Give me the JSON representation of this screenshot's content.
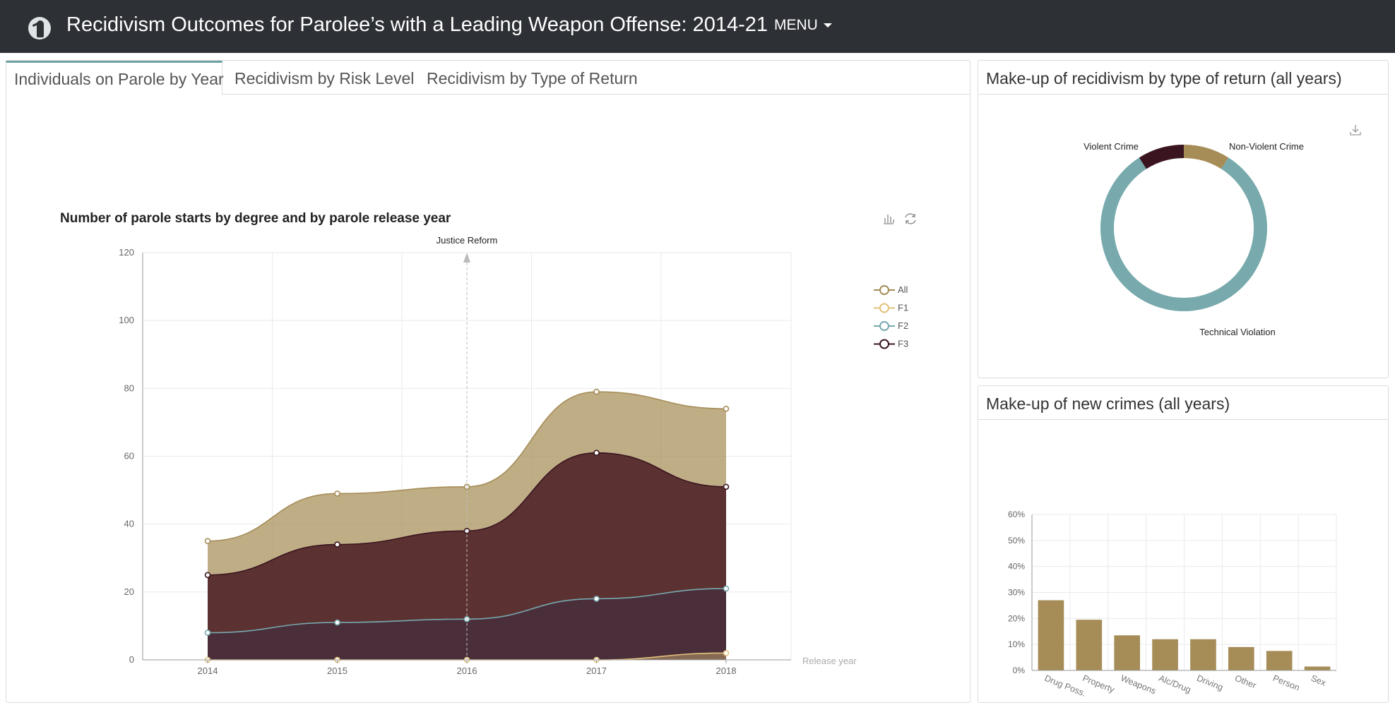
{
  "header": {
    "title": "Recidivism Outcomes for Parolee’s with a Leading Weapon Offense: 2014-21",
    "menu_label": "MENU"
  },
  "tabs": [
    {
      "label": "Individuals on Parole by Year",
      "active": true
    },
    {
      "label": "Recidivism by Risk Level",
      "active": false
    },
    {
      "label": "Recidivism by Type of Return",
      "active": false
    }
  ],
  "icons": {
    "logo": "parolee-logo-icon",
    "bar_toggle": "bar-chart-icon",
    "restore": "refresh-icon",
    "download": "download-icon",
    "menu_caret": "caret-down-icon"
  },
  "side_top": {
    "title": "Make-up of recidivism by type of return (all years)"
  },
  "side_bottom": {
    "title": "Make-up of new crimes (all years)"
  },
  "colors": {
    "nav": "#2d3035",
    "all": "#a68d58",
    "f1": "#e3c27e",
    "f2": "#77a9ad",
    "f3": "#3a1520",
    "tab_accent": "#6ea3a4"
  },
  "chart_data": [
    {
      "type": "area",
      "title": "Number of parole starts by degree and by parole release year",
      "xlabel": "Release year",
      "ylabel": "",
      "x": [
        "2014",
        "2015",
        "2016",
        "2017",
        "2018"
      ],
      "ylim": [
        0,
        120
      ],
      "yticks": [
        "0",
        "20",
        "40",
        "60",
        "80",
        "100",
        "120"
      ],
      "grid": true,
      "legend_position": "right",
      "markline": {
        "x": "2016",
        "label": "Justice Reform"
      },
      "series": [
        {
          "name": "All",
          "values": [
            35,
            49,
            51,
            79,
            74
          ],
          "color": "#a68d58"
        },
        {
          "name": "F1",
          "values": [
            0,
            0,
            0,
            0,
            2
          ],
          "color": "#e3c27e"
        },
        {
          "name": "F2",
          "values": [
            8,
            11,
            12,
            18,
            21
          ],
          "color": "#77a9ad"
        },
        {
          "name": "F3",
          "values": [
            25,
            34,
            38,
            61,
            51
          ],
          "color": "#3a1520"
        }
      ]
    },
    {
      "type": "pie",
      "title": "",
      "slices": [
        {
          "label": "Non-Violent Crime",
          "value": 9,
          "color": "#a68d58"
        },
        {
          "label": "Technical Violation",
          "value": 82,
          "color": "#77a9ad"
        },
        {
          "label": "Violent Crime",
          "value": 9,
          "color": "#3a1520"
        }
      ]
    },
    {
      "type": "bar",
      "title": "",
      "categories": [
        "Drug Poss.",
        "Property",
        "Weapons",
        "Alc/Drug",
        "Driving",
        "Other",
        "Person",
        "Sex"
      ],
      "values": [
        27,
        19.5,
        13.5,
        12,
        12,
        9,
        7.5,
        1.5
      ],
      "yticks": [
        "0%",
        "10%",
        "20%",
        "30%",
        "40%",
        "50%",
        "60%"
      ],
      "ylim": [
        0,
        60
      ],
      "color": "#a68d58",
      "grid": true
    }
  ]
}
